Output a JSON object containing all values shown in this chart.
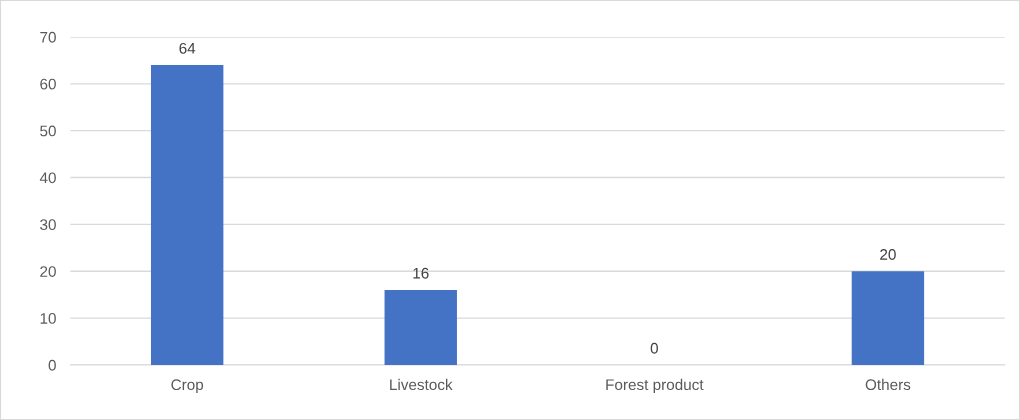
{
  "chart_data": {
    "type": "bar",
    "categories": [
      "Crop",
      "Livestock",
      "Forest product",
      "Others"
    ],
    "values": [
      64,
      16,
      0,
      20
    ],
    "color": "#4472c4",
    "ylim": [
      0,
      70
    ],
    "yticks": [
      0,
      10,
      20,
      30,
      40,
      50,
      60,
      70
    ],
    "grid": "y",
    "data_labels": true
  }
}
